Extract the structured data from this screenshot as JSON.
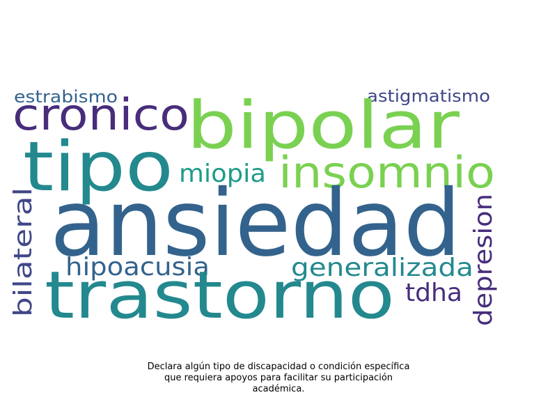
{
  "colors": {
    "background": "#ffffff",
    "caption": "#000000",
    "dark_purple": "#472d7b",
    "indigo": "#3f4788",
    "slate_blue": "#33638d",
    "teal": "#23898e",
    "sea_green": "#1e9c89",
    "light_green": "#7ad151"
  },
  "words": [
    {
      "id": "ansiedad",
      "text": "ansiedad"
    },
    {
      "id": "trastorno",
      "text": "trastorno"
    },
    {
      "id": "tipo",
      "text": "tipo"
    },
    {
      "id": "bipolar",
      "text": "bipolar"
    },
    {
      "id": "cronico",
      "text": "cronico"
    },
    {
      "id": "insomnio",
      "text": "insomnio"
    },
    {
      "id": "generalizada",
      "text": "generalizada"
    },
    {
      "id": "hipoacusia",
      "text": "hipoacusia"
    },
    {
      "id": "miopia",
      "text": "miopia"
    },
    {
      "id": "depresion",
      "text": "depresion"
    },
    {
      "id": "bilateral",
      "text": "bilateral"
    },
    {
      "id": "tdha",
      "text": "tdha"
    },
    {
      "id": "astigmatismo",
      "text": "astigmatismo"
    },
    {
      "id": "estrabismo",
      "text": "estrabismo"
    }
  ],
  "caption": {
    "line1": "Declara algún tipo de discapacidad o condición específica",
    "line2": "que requiera apoyos para facilitar su participación",
    "line3": "académica."
  }
}
